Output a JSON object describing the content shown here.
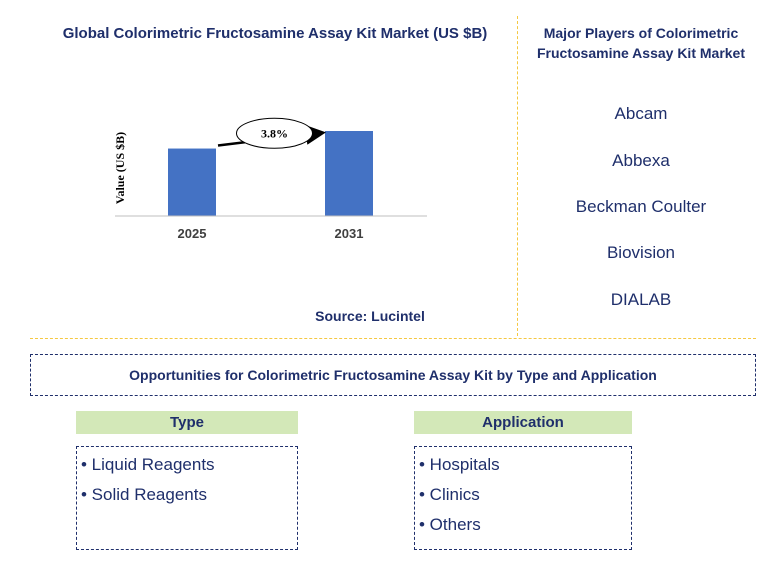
{
  "chart_title": "Global Colorimetric Fructosamine Assay Kit Market (US $B)",
  "chart_data": {
    "type": "bar",
    "categories": [
      "2025",
      "2031"
    ],
    "values": [
      1.0,
      1.26
    ],
    "ylabel": "Value (US $B)",
    "xlabel": "",
    "annotation": "3.8%",
    "bar_color": "#4472c4"
  },
  "source": "Source: Lucintel",
  "players": {
    "title": "Major Players of Colorimetric Fructosamine Assay Kit Market",
    "items": [
      "Abcam",
      "Abbexa",
      "Beckman Coulter",
      "Biovision",
      "DIALAB"
    ]
  },
  "opportunities_title": "Opportunities for Colorimetric Fructosamine Assay Kit by Type and Application",
  "type_column": {
    "header": "Type",
    "items": [
      "• Liquid Reagents",
      "• Solid Reagents"
    ]
  },
  "application_column": {
    "header": "Application",
    "items": [
      "• Hospitals",
      "• Clinics",
      "• Others"
    ]
  },
  "colors": {
    "title_text": "#1f2f6b",
    "divider": "#f5c842",
    "header_bg": "#d3e8b8",
    "bar": "#4472c4"
  }
}
